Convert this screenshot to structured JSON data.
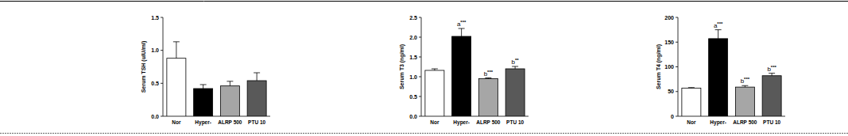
{
  "chart_data": [
    {
      "type": "bar",
      "y_label": "Serum TSH (uIU/ml)",
      "categories": [
        "Nor",
        "Hyper-",
        "ALRP 500",
        "PTU 10"
      ],
      "values": [
        0.88,
        0.42,
        0.46,
        0.54
      ],
      "errors": [
        0.25,
        0.06,
        0.07,
        0.12
      ],
      "colors": [
        "#ffffff",
        "#000000",
        "#a6a6a6",
        "#595959"
      ],
      "ylim": [
        0,
        1.5
      ],
      "yticks": [
        {
          "value": 0,
          "label": "0.0"
        },
        0.5,
        {
          "value": 1,
          "label": "1.0"
        },
        1.5
      ]
    },
    {
      "type": "bar",
      "y_label": "Serum T3 (ng/ml)",
      "categories": [
        "Nor",
        "Hyper-",
        "ALRP 500",
        "PTU 10"
      ],
      "values": [
        1.16,
        2.02,
        0.95,
        1.2
      ],
      "errors": [
        0.04,
        0.2,
        0.02,
        0.06
      ],
      "colors": [
        "#ffffff",
        "#000000",
        "#a6a6a6",
        "#595959"
      ],
      "annotations": [
        null,
        "a***",
        "b***",
        "b**"
      ],
      "ylim": [
        0,
        2.5
      ],
      "yticks": [
        {
          "value": 0,
          "label": "0.0"
        },
        0.5,
        {
          "value": 1,
          "label": "1.0"
        },
        1.5,
        {
          "value": 2,
          "label": "2.0"
        },
        2.5
      ]
    },
    {
      "type": "bar",
      "y_label": "Serum T4 (ng/ml)",
      "categories": [
        "Nor",
        "Hyper-",
        "ALRP 500",
        "PTU 10"
      ],
      "values": [
        57,
        157,
        59,
        82
      ],
      "errors": [
        1,
        18,
        3,
        5
      ],
      "colors": [
        "#ffffff",
        "#000000",
        "#a6a6a6",
        "#595959"
      ],
      "annotations": [
        null,
        "a***",
        "b***",
        "b***"
      ],
      "ylim": [
        0,
        200
      ],
      "yticks": [
        0,
        50,
        100,
        150,
        200
      ]
    }
  ]
}
